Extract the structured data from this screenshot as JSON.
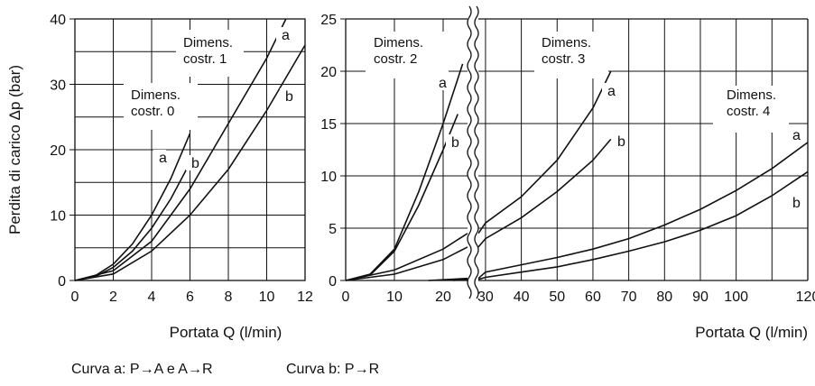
{
  "ylabel": "Perdita di carico Δp (bar)",
  "footer": {
    "curve_a": "Curva a: P→A e A→R",
    "curve_b": "Curva b: P→R"
  },
  "chart_data": [
    {
      "type": "line",
      "xlabel": "Portata Q (l/min)",
      "ylabel": "Perdita di carico Δp (bar)",
      "xlim": [
        0,
        12
      ],
      "ylim": [
        0,
        40
      ],
      "x_ticks": [
        0,
        2,
        4,
        6,
        8,
        10,
        12
      ],
      "y_ticks": [
        0,
        10,
        20,
        30,
        40
      ],
      "grid": true,
      "series": [
        {
          "name": "a",
          "group": "Dimens. costr. 0",
          "x": [
            0,
            1,
            2,
            3,
            4,
            5,
            6
          ],
          "y": [
            0,
            0.6,
            2.5,
            5.6,
            10,
            15.6,
            22.5
          ]
        },
        {
          "name": "b",
          "group": "Dimens. costr. 0",
          "x": [
            0,
            1,
            2,
            3,
            4,
            5,
            6
          ],
          "y": [
            0,
            0.5,
            2,
            4.5,
            8,
            12.5,
            18
          ]
        },
        {
          "name": "a",
          "group": "Dimens. costr. 1",
          "x": [
            0,
            2,
            4,
            6,
            8,
            10,
            11
          ],
          "y": [
            0,
            1.5,
            6,
            14,
            24,
            34,
            40
          ]
        },
        {
          "name": "b",
          "group": "Dimens. costr. 1",
          "x": [
            0,
            2,
            4,
            6,
            8,
            10,
            12
          ],
          "y": [
            0,
            1,
            4.5,
            10,
            17,
            26,
            36
          ]
        }
      ],
      "annotations": [
        {
          "text": "Dimens.\ncostr. 0",
          "target": "costr-0"
        },
        {
          "text": "Dimens.\ncostr. 1",
          "target": "costr-1"
        },
        {
          "text": "a",
          "series": 0
        },
        {
          "text": "b",
          "series": 1
        },
        {
          "text": "a",
          "series": 2
        },
        {
          "text": "b",
          "series": 3
        }
      ]
    },
    {
      "type": "line",
      "xlabel": "Portata Q (l/min)",
      "ylabel": "",
      "xlim": [
        0,
        120
      ],
      "ylim": [
        0,
        25
      ],
      "axis_break": [
        25,
        28
      ],
      "x_ticks": [
        0,
        10,
        20,
        30,
        40,
        50,
        60,
        70,
        80,
        90,
        100,
        120
      ],
      "y_ticks": [
        0,
        5,
        10,
        15,
        20,
        25
      ],
      "grid": true,
      "series": [
        {
          "name": "a",
          "group": "Dimens. costr. 2",
          "x": [
            0,
            5,
            10,
            15,
            20,
            24
          ],
          "y": [
            0,
            0.6,
            3,
            8.5,
            15,
            20.7
          ]
        },
        {
          "name": "b",
          "group": "Dimens. costr. 2",
          "x": [
            0,
            5,
            10,
            15,
            20,
            23
          ],
          "y": [
            0,
            0.5,
            2.8,
            7.2,
            12.5,
            15.9
          ]
        },
        {
          "name": "a",
          "group": "Dimens. costr. 3",
          "x": [
            0,
            10,
            20,
            25,
            30,
            40,
            50,
            60,
            65
          ],
          "y": [
            0,
            1,
            3,
            4.5,
            5.5,
            8,
            11.5,
            16.5,
            20
          ]
        },
        {
          "name": "b",
          "group": "Dimens. costr. 3",
          "x": [
            0,
            10,
            20,
            25,
            30,
            40,
            50,
            60,
            65
          ],
          "y": [
            0,
            0.6,
            2,
            3.2,
            4,
            6,
            8.5,
            11.5,
            13.5
          ]
        },
        {
          "name": "a",
          "group": "Dimens. costr. 4",
          "x": [
            17,
            25,
            30,
            40,
            50,
            60,
            70,
            80,
            90,
            100,
            110,
            120
          ],
          "y": [
            0,
            0.2,
            0.8,
            1.5,
            2.2,
            3,
            4,
            5.3,
            6.8,
            8.6,
            10.7,
            13.2
          ]
        },
        {
          "name": "b",
          "group": "Dimens. costr. 4",
          "x": [
            22,
            25,
            30,
            40,
            50,
            60,
            70,
            80,
            90,
            100,
            110,
            120
          ],
          "y": [
            0,
            0.1,
            0.3,
            0.8,
            1.3,
            2,
            2.8,
            3.7,
            4.8,
            6.2,
            8.1,
            10.4
          ]
        }
      ],
      "annotations": [
        {
          "text": "Dimens.\ncostr. 2",
          "target": "costr-2"
        },
        {
          "text": "Dimens.\ncostr. 3",
          "target": "costr-3"
        },
        {
          "text": "Dimens.\ncostr. 4",
          "target": "costr-4"
        },
        {
          "text": "a",
          "series": 0
        },
        {
          "text": "b",
          "series": 1
        },
        {
          "text": "a",
          "series": 2
        },
        {
          "text": "b",
          "series": 3
        },
        {
          "text": "a",
          "series": 4
        },
        {
          "text": "b",
          "series": 5
        }
      ]
    }
  ]
}
